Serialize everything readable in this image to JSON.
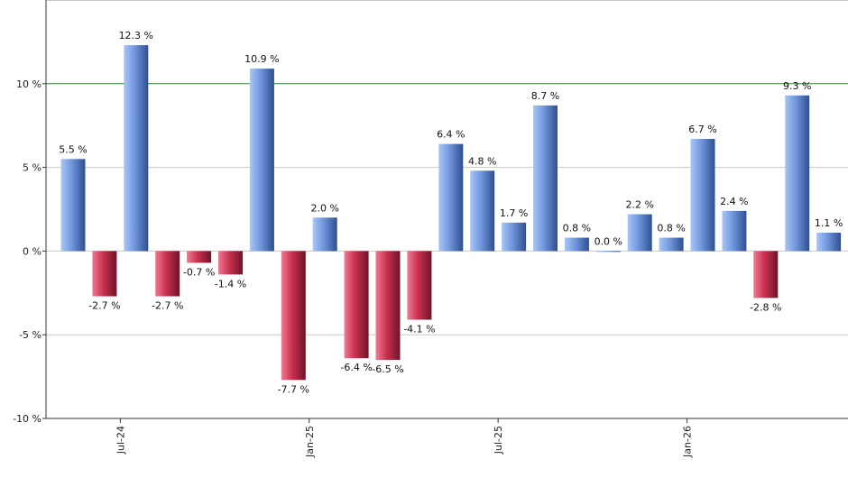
{
  "chart_data": {
    "type": "bar",
    "title": "",
    "xlabel": "",
    "ylabel": "",
    "ylim": [
      -10,
      15
    ],
    "y_ticks": [
      {
        "value": -10,
        "label": "-10 %"
      },
      {
        "value": -5,
        "label": "-5 %"
      },
      {
        "value": 0,
        "label": "0 %"
      },
      {
        "value": 5,
        "label": "5 %"
      },
      {
        "value": 10,
        "label": "10 %"
      }
    ],
    "x_ticks": [
      {
        "index": 2,
        "label": "Jul-24"
      },
      {
        "index": 8,
        "label": "Jan-25"
      },
      {
        "index": 14,
        "label": "Jul-25"
      },
      {
        "index": 20,
        "label": "Jan-26"
      }
    ],
    "reference_line": {
      "value": 10,
      "color": "#2e7d32"
    },
    "grid": true,
    "colors": {
      "positive": "#4a72c4",
      "negative": "#b8203f"
    },
    "values": [
      5.5,
      -2.7,
      12.3,
      -2.7,
      -0.7,
      -1.4,
      10.9,
      -7.7,
      2.0,
      -6.4,
      -6.5,
      -4.1,
      6.4,
      4.8,
      1.7,
      8.7,
      0.8,
      0.0,
      2.2,
      0.8,
      6.7,
      2.4,
      -2.8,
      9.3,
      1.1
    ],
    "labels": [
      "5.5 %",
      "-2.7 %",
      "12.3 %",
      "-2.7 %",
      "-0.7 %",
      "-1.4 %",
      "10.9 %",
      "-7.7 %",
      "2.0 %",
      "-6.4 %",
      "-6.5 %",
      "-4.1 %",
      "6.4 %",
      "4.8 %",
      "1.7 %",
      "8.7 %",
      "0.8 %",
      "0.0 %",
      "2.2 %",
      "0.8 %",
      "6.7 %",
      "2.4 %",
      "-2.8 %",
      "9.3 %",
      "1.1 %"
    ]
  }
}
